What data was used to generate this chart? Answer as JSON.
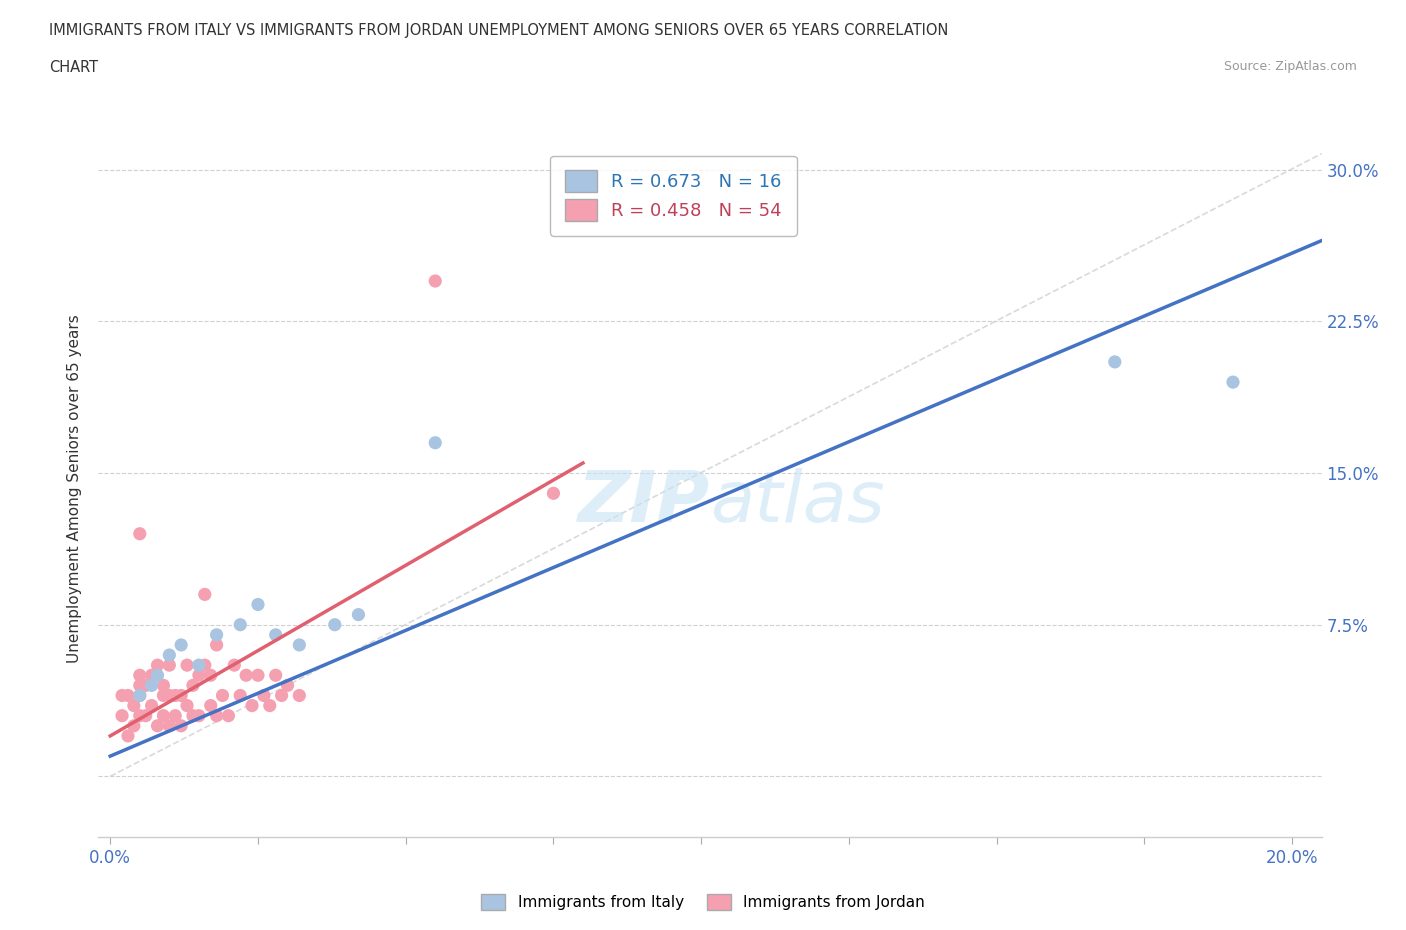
{
  "title_line1": "IMMIGRANTS FROM ITALY VS IMMIGRANTS FROM JORDAN UNEMPLOYMENT AMONG SENIORS OVER 65 YEARS CORRELATION",
  "title_line2": "CHART",
  "source": "Source: ZipAtlas.com",
  "ylabel": "Unemployment Among Seniors over 65 years",
  "ytick_labels": [
    "",
    "7.5%",
    "15.0%",
    "22.5%",
    "30.0%"
  ],
  "yticks": [
    0.0,
    0.075,
    0.15,
    0.225,
    0.3
  ],
  "xlim": [
    -0.002,
    0.205
  ],
  "ylim": [
    -0.03,
    0.315
  ],
  "italy_color": "#a8c4e0",
  "italy_line_color": "#4472c4",
  "jordan_color": "#f4a0b0",
  "jordan_line_color": "#e06070",
  "italy_R": 0.673,
  "italy_N": 16,
  "jordan_R": 0.458,
  "jordan_N": 54,
  "italy_scatter_x": [
    0.005,
    0.007,
    0.008,
    0.01,
    0.012,
    0.015,
    0.018,
    0.022,
    0.025,
    0.028,
    0.032,
    0.038,
    0.042,
    0.055,
    0.17,
    0.19
  ],
  "italy_scatter_y": [
    0.04,
    0.045,
    0.05,
    0.06,
    0.065,
    0.055,
    0.07,
    0.075,
    0.085,
    0.07,
    0.065,
    0.075,
    0.08,
    0.165,
    0.205,
    0.195
  ],
  "jordan_scatter_x": [
    0.002,
    0.002,
    0.003,
    0.003,
    0.004,
    0.004,
    0.005,
    0.005,
    0.005,
    0.005,
    0.005,
    0.006,
    0.006,
    0.007,
    0.007,
    0.008,
    0.008,
    0.009,
    0.009,
    0.009,
    0.01,
    0.01,
    0.01,
    0.011,
    0.011,
    0.012,
    0.012,
    0.013,
    0.013,
    0.014,
    0.014,
    0.015,
    0.015,
    0.016,
    0.016,
    0.017,
    0.017,
    0.018,
    0.018,
    0.019,
    0.02,
    0.021,
    0.022,
    0.023,
    0.024,
    0.025,
    0.026,
    0.027,
    0.028,
    0.029,
    0.03,
    0.032,
    0.055,
    0.075
  ],
  "jordan_scatter_y": [
    0.03,
    0.04,
    0.02,
    0.04,
    0.025,
    0.035,
    0.03,
    0.04,
    0.045,
    0.05,
    0.12,
    0.03,
    0.045,
    0.035,
    0.05,
    0.025,
    0.055,
    0.03,
    0.04,
    0.045,
    0.025,
    0.04,
    0.055,
    0.03,
    0.04,
    0.025,
    0.04,
    0.035,
    0.055,
    0.03,
    0.045,
    0.03,
    0.05,
    0.055,
    0.09,
    0.035,
    0.05,
    0.03,
    0.065,
    0.04,
    0.03,
    0.055,
    0.04,
    0.05,
    0.035,
    0.05,
    0.04,
    0.035,
    0.05,
    0.04,
    0.045,
    0.04,
    0.245,
    0.14
  ],
  "background_color": "#ffffff",
  "grid_color": "#d0d0d0",
  "watermark_text": "ZIP atlas",
  "diagonal_color": "#d0d0d0",
  "italy_line_x": [
    0.0,
    0.205
  ],
  "italy_line_y": [
    0.01,
    0.265
  ],
  "jordan_line_x": [
    0.0,
    0.08
  ],
  "jordan_line_y": [
    0.02,
    0.155
  ]
}
